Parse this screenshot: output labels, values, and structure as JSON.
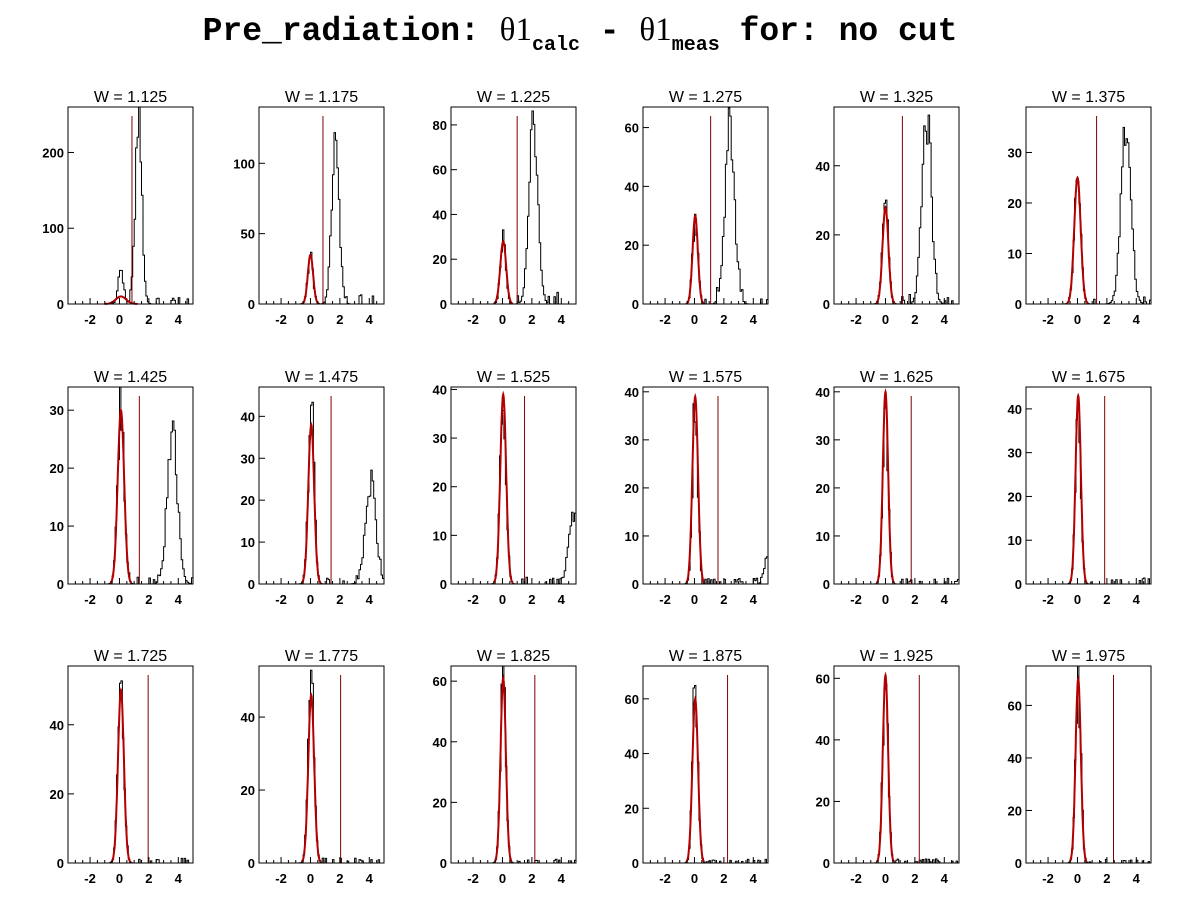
{
  "title": {
    "prefix": "Pre_radiation: ",
    "theta1": "θ1",
    "calc": "calc",
    "minus": " - ",
    "theta2": "θ1",
    "meas": "meas",
    "suffix": " for: no cut"
  },
  "colors": {
    "hist": "#000000",
    "fit": "#b30000",
    "cut": "#800000"
  },
  "chart_data": [
    {
      "type": "histogram",
      "title": "W = 1.125",
      "xlim": [
        -3.5,
        5.0
      ],
      "ylim": [
        0,
        260
      ],
      "x_ticks": [
        -2,
        0,
        2,
        4
      ],
      "y_ticks": [
        0,
        100,
        200
      ],
      "peaks": [
        {
          "x": 0.1,
          "height": 45,
          "sigma": 0.18
        },
        {
          "x": 1.3,
          "height": 250,
          "sigma": 0.22
        }
      ],
      "fit": {
        "mean": 0.1,
        "height": 10,
        "sigma": 0.35
      },
      "cut_line": 0.85,
      "tail": 7
    },
    {
      "type": "histogram",
      "title": "W = 1.175",
      "xlim": [
        -3.5,
        5.0
      ],
      "ylim": [
        0,
        140
      ],
      "x_ticks": [
        -2,
        0,
        2,
        4
      ],
      "y_ticks": [
        0,
        50,
        100
      ],
      "peaks": [
        {
          "x": 0.0,
          "height": 35,
          "sigma": 0.18
        },
        {
          "x": 1.7,
          "height": 130,
          "sigma": 0.25
        }
      ],
      "fit": {
        "mean": 0.0,
        "height": 35,
        "sigma": 0.18
      },
      "cut_line": 0.85,
      "tail": 6
    },
    {
      "type": "histogram",
      "title": "W = 1.225",
      "xlim": [
        -3.5,
        5.0
      ],
      "ylim": [
        0,
        88
      ],
      "x_ticks": [
        -2,
        0,
        2,
        4
      ],
      "y_ticks": [
        0,
        20,
        40,
        60,
        80
      ],
      "peaks": [
        {
          "x": 0.05,
          "height": 33,
          "sigma": 0.18
        },
        {
          "x": 2.1,
          "height": 85,
          "sigma": 0.3
        }
      ],
      "fit": {
        "mean": 0.05,
        "height": 28,
        "sigma": 0.2
      },
      "cut_line": 1.0,
      "tail": 4
    },
    {
      "type": "histogram",
      "title": "W = 1.275",
      "xlim": [
        -3.5,
        5.0
      ],
      "ylim": [
        0,
        67
      ],
      "x_ticks": [
        -2,
        0,
        2,
        4
      ],
      "y_ticks": [
        0,
        20,
        40,
        60
      ],
      "peaks": [
        {
          "x": 0.05,
          "height": 30,
          "sigma": 0.18
        },
        {
          "x": 2.4,
          "height": 64,
          "sigma": 0.32
        }
      ],
      "fit": {
        "mean": 0.05,
        "height": 30,
        "sigma": 0.18
      },
      "cut_line": 1.1,
      "tail": 3
    },
    {
      "type": "histogram",
      "title": "W = 1.325",
      "xlim": [
        -3.5,
        5.0
      ],
      "ylim": [
        0,
        57
      ],
      "x_ticks": [
        -2,
        0,
        2,
        4
      ],
      "y_ticks": [
        0,
        20,
        40
      ],
      "peaks": [
        {
          "x": 0.0,
          "height": 29,
          "sigma": 0.2
        },
        {
          "x": 2.8,
          "height": 55,
          "sigma": 0.32
        }
      ],
      "fit": {
        "mean": 0.0,
        "height": 28,
        "sigma": 0.2
      },
      "cut_line": 1.15,
      "tail": 2
    },
    {
      "type": "histogram",
      "title": "W = 1.375",
      "xlim": [
        -3.5,
        5.0
      ],
      "ylim": [
        0,
        39
      ],
      "x_ticks": [
        -2,
        0,
        2,
        4
      ],
      "y_ticks": [
        0,
        10,
        20,
        30
      ],
      "peaks": [
        {
          "x": 0.0,
          "height": 26,
          "sigma": 0.22
        },
        {
          "x": 3.3,
          "height": 34,
          "sigma": 0.34
        }
      ],
      "fit": {
        "mean": 0.0,
        "height": 25,
        "sigma": 0.22
      },
      "cut_line": 1.3,
      "tail": 1
    },
    {
      "type": "histogram",
      "title": "W = 1.425",
      "xlim": [
        -3.5,
        5.0
      ],
      "ylim": [
        0,
        34
      ],
      "x_ticks": [
        -2,
        0,
        2,
        4
      ],
      "y_ticks": [
        0,
        10,
        20,
        30
      ],
      "peaks": [
        {
          "x": 0.1,
          "height": 33,
          "sigma": 0.22
        },
        {
          "x": 3.6,
          "height": 26,
          "sigma": 0.35
        }
      ],
      "fit": {
        "mean": 0.1,
        "height": 30,
        "sigma": 0.22
      },
      "cut_line": 1.35,
      "tail": 1
    },
    {
      "type": "histogram",
      "title": "W = 1.475",
      "xlim": [
        -3.5,
        5.0
      ],
      "ylim": [
        0,
        47
      ],
      "x_ticks": [
        -2,
        0,
        2,
        4
      ],
      "y_ticks": [
        0,
        10,
        20,
        30,
        40
      ],
      "peaks": [
        {
          "x": 0.05,
          "height": 44,
          "sigma": 0.2
        },
        {
          "x": 4.1,
          "height": 24,
          "sigma": 0.35
        }
      ],
      "fit": {
        "mean": 0.05,
        "height": 38,
        "sigma": 0.2
      },
      "cut_line": 1.4,
      "tail": 1
    },
    {
      "type": "histogram",
      "title": "W = 1.525",
      "xlim": [
        -3.5,
        5.0
      ],
      "ylim": [
        0,
        40.5
      ],
      "x_ticks": [
        -2,
        0,
        2,
        4
      ],
      "y_ticks": [
        0,
        10,
        20,
        30,
        40
      ],
      "peaks": [
        {
          "x": 0.05,
          "height": 40,
          "sigma": 0.2
        },
        {
          "x": 4.8,
          "height": 15,
          "sigma": 0.3
        }
      ],
      "fit": {
        "mean": 0.05,
        "height": 39,
        "sigma": 0.2
      },
      "cut_line": 1.5,
      "tail": 1
    },
    {
      "type": "histogram",
      "title": "W = 1.575",
      "xlim": [
        -3.5,
        5.0
      ],
      "ylim": [
        0,
        41
      ],
      "x_ticks": [
        -2,
        0,
        2,
        4
      ],
      "y_ticks": [
        0,
        10,
        20,
        30,
        40
      ],
      "peaks": [
        {
          "x": 0.05,
          "height": 40,
          "sigma": 0.18
        },
        {
          "x": 4.95,
          "height": 6,
          "sigma": 0.2
        }
      ],
      "fit": {
        "mean": 0.05,
        "height": 39,
        "sigma": 0.19
      },
      "cut_line": 1.6,
      "tail": 1
    },
    {
      "type": "histogram",
      "title": "W = 1.625",
      "xlim": [
        -3.5,
        5.0
      ],
      "ylim": [
        0,
        41
      ],
      "x_ticks": [
        -2,
        0,
        2,
        4
      ],
      "y_ticks": [
        0,
        10,
        20,
        30,
        40
      ],
      "peaks": [
        {
          "x": 0.0,
          "height": 40,
          "sigma": 0.18
        }
      ],
      "fit": {
        "mean": 0.0,
        "height": 40,
        "sigma": 0.18
      },
      "cut_line": 1.75,
      "tail": 1
    },
    {
      "type": "histogram",
      "title": "W = 1.675",
      "xlim": [
        -3.5,
        5.0
      ],
      "ylim": [
        0,
        45
      ],
      "x_ticks": [
        -2,
        0,
        2,
        4
      ],
      "y_ticks": [
        0,
        10,
        20,
        30,
        40
      ],
      "peaks": [
        {
          "x": 0.05,
          "height": 43,
          "sigma": 0.18
        }
      ],
      "fit": {
        "mean": 0.05,
        "height": 43,
        "sigma": 0.18
      },
      "cut_line": 1.85,
      "tail": 1
    },
    {
      "type": "histogram",
      "title": "W = 1.725",
      "xlim": [
        -3.5,
        5.0
      ],
      "ylim": [
        0,
        57
      ],
      "x_ticks": [
        -2,
        0,
        2,
        4
      ],
      "y_ticks": [
        0,
        20,
        40
      ],
      "peaks": [
        {
          "x": 0.1,
          "height": 56,
          "sigma": 0.2
        }
      ],
      "fit": {
        "mean": 0.1,
        "height": 50,
        "sigma": 0.2
      },
      "cut_line": 1.95,
      "tail": 1
    },
    {
      "type": "histogram",
      "title": "W = 1.775",
      "xlim": [
        -3.5,
        5.0
      ],
      "ylim": [
        0,
        54
      ],
      "x_ticks": [
        -2,
        0,
        2,
        4
      ],
      "y_ticks": [
        0,
        20,
        40
      ],
      "peaks": [
        {
          "x": 0.05,
          "height": 53,
          "sigma": 0.2
        }
      ],
      "fit": {
        "mean": 0.05,
        "height": 46,
        "sigma": 0.2
      },
      "cut_line": 2.05,
      "tail": 1
    },
    {
      "type": "histogram",
      "title": "W = 1.825",
      "xlim": [
        -3.5,
        5.0
      ],
      "ylim": [
        0,
        65
      ],
      "x_ticks": [
        -2,
        0,
        2,
        4
      ],
      "y_ticks": [
        0,
        20,
        40,
        60
      ],
      "peaks": [
        {
          "x": 0.05,
          "height": 62,
          "sigma": 0.18
        }
      ],
      "fit": {
        "mean": 0.05,
        "height": 61,
        "sigma": 0.18
      },
      "cut_line": 2.2,
      "tail": 1
    },
    {
      "type": "histogram",
      "title": "W = 1.875",
      "xlim": [
        -3.5,
        5.0
      ],
      "ylim": [
        0,
        72
      ],
      "x_ticks": [
        -2,
        0,
        2,
        4
      ],
      "y_ticks": [
        0,
        20,
        40,
        60
      ],
      "peaks": [
        {
          "x": 0.05,
          "height": 70,
          "sigma": 0.18
        }
      ],
      "fit": {
        "mean": 0.05,
        "height": 60,
        "sigma": 0.19
      },
      "cut_line": 2.25,
      "tail": 1
    },
    {
      "type": "histogram",
      "title": "W = 1.925",
      "xlim": [
        -3.5,
        5.0
      ],
      "ylim": [
        0,
        64
      ],
      "x_ticks": [
        -2,
        0,
        2,
        4
      ],
      "y_ticks": [
        0,
        20,
        40,
        60
      ],
      "peaks": [
        {
          "x": 0.0,
          "height": 62,
          "sigma": 0.18
        }
      ],
      "fit": {
        "mean": 0.0,
        "height": 61,
        "sigma": 0.18
      },
      "cut_line": 2.3,
      "tail": 1
    },
    {
      "type": "histogram",
      "title": "W = 1.975",
      "xlim": [
        -3.5,
        5.0
      ],
      "ylim": [
        0,
        75
      ],
      "x_ticks": [
        -2,
        0,
        2,
        4
      ],
      "y_ticks": [
        0,
        20,
        40,
        60
      ],
      "peaks": [
        {
          "x": 0.05,
          "height": 72,
          "sigma": 0.18
        }
      ],
      "fit": {
        "mean": 0.05,
        "height": 70,
        "sigma": 0.18
      },
      "cut_line": 2.45,
      "tail": 1
    }
  ]
}
